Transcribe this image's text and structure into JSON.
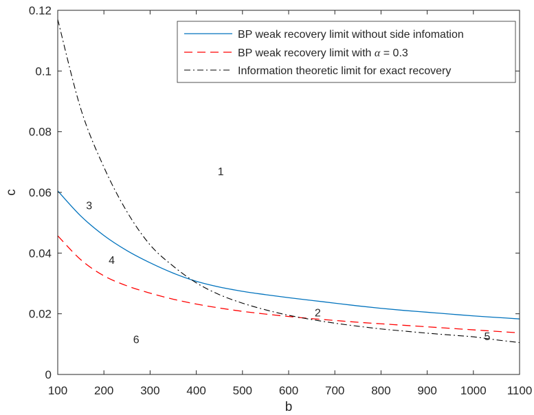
{
  "chart_data": {
    "type": "line",
    "xlabel": "b",
    "ylabel": "c",
    "xlim": [
      100,
      1100
    ],
    "ylim": [
      0,
      0.12
    ],
    "x_ticks": [
      "100",
      "200",
      "300",
      "400",
      "500",
      "600",
      "700",
      "800",
      "900",
      "1000",
      "1100"
    ],
    "y_ticks": [
      "0",
      "0.02",
      "0.04",
      "0.06",
      "0.08",
      "0.1",
      "0.12"
    ],
    "grid": false,
    "legend_position": "top-right",
    "x": [
      100,
      150,
      200,
      250,
      300,
      350,
      400,
      450,
      500,
      550,
      600,
      650,
      700,
      750,
      800,
      850,
      900,
      950,
      1000,
      1050,
      1100
    ],
    "series": [
      {
        "name": "BP weak recovery limit without side infomation",
        "legend_prefix": "BP weak recovery limit with",
        "color": "#0072BD",
        "style": "solid",
        "values": [
          0.0605,
          0.0522,
          0.0458,
          0.0408,
          0.0368,
          0.0334,
          0.0307,
          0.0288,
          0.0274,
          0.0263,
          0.0253,
          0.0244,
          0.0235,
          0.0226,
          0.0218,
          0.0211,
          0.0205,
          0.0199,
          0.0193,
          0.0188,
          0.0183
        ]
      },
      {
        "name": "BP weak recovery limit with α = 0.3",
        "legend_prefix": "BP weak recovery limit with",
        "legend_symbol": "α",
        "legend_suffix": "= 0.3",
        "color": "#FF0000",
        "style": "dashed",
        "values": [
          0.0457,
          0.0378,
          0.0325,
          0.0292,
          0.0268,
          0.0248,
          0.0232,
          0.0219,
          0.0208,
          0.0199,
          0.0191,
          0.0184,
          0.0178,
          0.0172,
          0.0167,
          0.0162,
          0.0157,
          0.0152,
          0.0147,
          0.0142,
          0.0137
        ]
      },
      {
        "name": "Information theoretic limit for exact recovery",
        "color": "#000000",
        "style": "dashdot",
        "values": [
          0.117,
          0.0875,
          0.0683,
          0.0536,
          0.0427,
          0.0357,
          0.0302,
          0.0263,
          0.0235,
          0.0213,
          0.0195,
          0.0181,
          0.0169,
          0.0159,
          0.015,
          0.0143,
          0.0136,
          0.013,
          0.0124,
          0.0114,
          0.0105
        ]
      }
    ],
    "annotations": [
      {
        "text": "1",
        "x": 453,
        "y": 0.067
      },
      {
        "text": "2",
        "x": 663,
        "y": 0.0205
      },
      {
        "text": "3",
        "x": 168,
        "y": 0.0558
      },
      {
        "text": "4",
        "x": 217,
        "y": 0.0378
      },
      {
        "text": "5",
        "x": 1030,
        "y": 0.0127
      },
      {
        "text": "6",
        "x": 270,
        "y": 0.0117
      }
    ]
  }
}
